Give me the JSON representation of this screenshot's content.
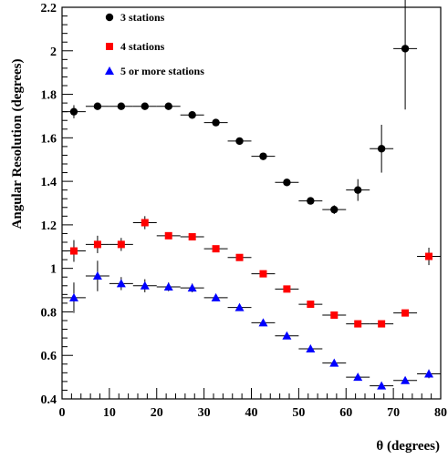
{
  "chart_data": {
    "type": "scatter",
    "xlabel": "θ (degrees)",
    "ylabel": "Angular Resolution (degrees)",
    "xlim": [
      0,
      80
    ],
    "ylim": [
      0.4,
      2.2
    ],
    "xticks": [
      0,
      10,
      20,
      30,
      40,
      50,
      60,
      70,
      80
    ],
    "xtick_labels": [
      "0",
      "10",
      "20",
      "30",
      "40",
      "50",
      "60",
      "70",
      "80"
    ],
    "yticks": [
      0.4,
      0.6,
      0.8,
      1.0,
      1.2,
      1.4,
      1.6,
      1.8,
      2.0,
      2.2
    ],
    "ytick_labels": [
      "0.4",
      "0.6",
      "0.8",
      "1",
      "1.2",
      "1.4",
      "1.6",
      "1.8",
      "2",
      "2.2"
    ],
    "grid": false,
    "legend_position": "top-left",
    "x_bin_halfwidth": 2.5,
    "series": [
      {
        "name": "3 stations",
        "marker": "circle",
        "color": "#000000",
        "x": [
          2.5,
          7.5,
          12.5,
          17.5,
          22.5,
          27.5,
          32.5,
          37.5,
          42.5,
          47.5,
          52.5,
          57.5,
          62.5,
          67.5,
          72.5
        ],
        "y": [
          1.72,
          1.745,
          1.745,
          1.745,
          1.745,
          1.705,
          1.67,
          1.585,
          1.515,
          1.395,
          1.31,
          1.27,
          1.36,
          1.55,
          2.01
        ],
        "yerr": [
          0.03,
          0.01,
          0.01,
          0.01,
          0.01,
          0.01,
          0.01,
          0.01,
          0.01,
          0.01,
          0.015,
          0.02,
          0.05,
          0.11,
          0.28
        ]
      },
      {
        "name": "4 stations",
        "marker": "square",
        "color": "#ff0000",
        "x": [
          2.5,
          7.5,
          12.5,
          17.5,
          22.5,
          27.5,
          32.5,
          37.5,
          42.5,
          47.5,
          52.5,
          57.5,
          62.5,
          67.5,
          72.5,
          77.5
        ],
        "y": [
          1.08,
          1.11,
          1.11,
          1.21,
          1.15,
          1.145,
          1.09,
          1.05,
          0.975,
          0.905,
          0.835,
          0.785,
          0.745,
          0.745,
          0.795,
          1.055
        ],
        "yerr": [
          0.05,
          0.04,
          0.03,
          0.03,
          0.01,
          0.01,
          0.01,
          0.01,
          0.01,
          0.01,
          0.01,
          0.01,
          0.01,
          0.01,
          0.01,
          0.04
        ]
      },
      {
        "name": "5 or more stations",
        "marker": "triangle",
        "color": "#0000ff",
        "x": [
          2.5,
          7.5,
          12.5,
          17.5,
          22.5,
          27.5,
          32.5,
          37.5,
          42.5,
          47.5,
          52.5,
          57.5,
          62.5,
          67.5,
          72.5,
          77.5
        ],
        "y": [
          0.865,
          0.965,
          0.93,
          0.92,
          0.915,
          0.91,
          0.865,
          0.82,
          0.75,
          0.69,
          0.63,
          0.565,
          0.5,
          0.46,
          0.485,
          0.515
        ],
        "yerr": [
          0.07,
          0.07,
          0.03,
          0.03,
          0.02,
          0.02,
          0.01,
          0.01,
          0.01,
          0.01,
          0.01,
          0.01,
          0.01,
          0.01,
          0.01,
          0.02
        ]
      }
    ]
  }
}
